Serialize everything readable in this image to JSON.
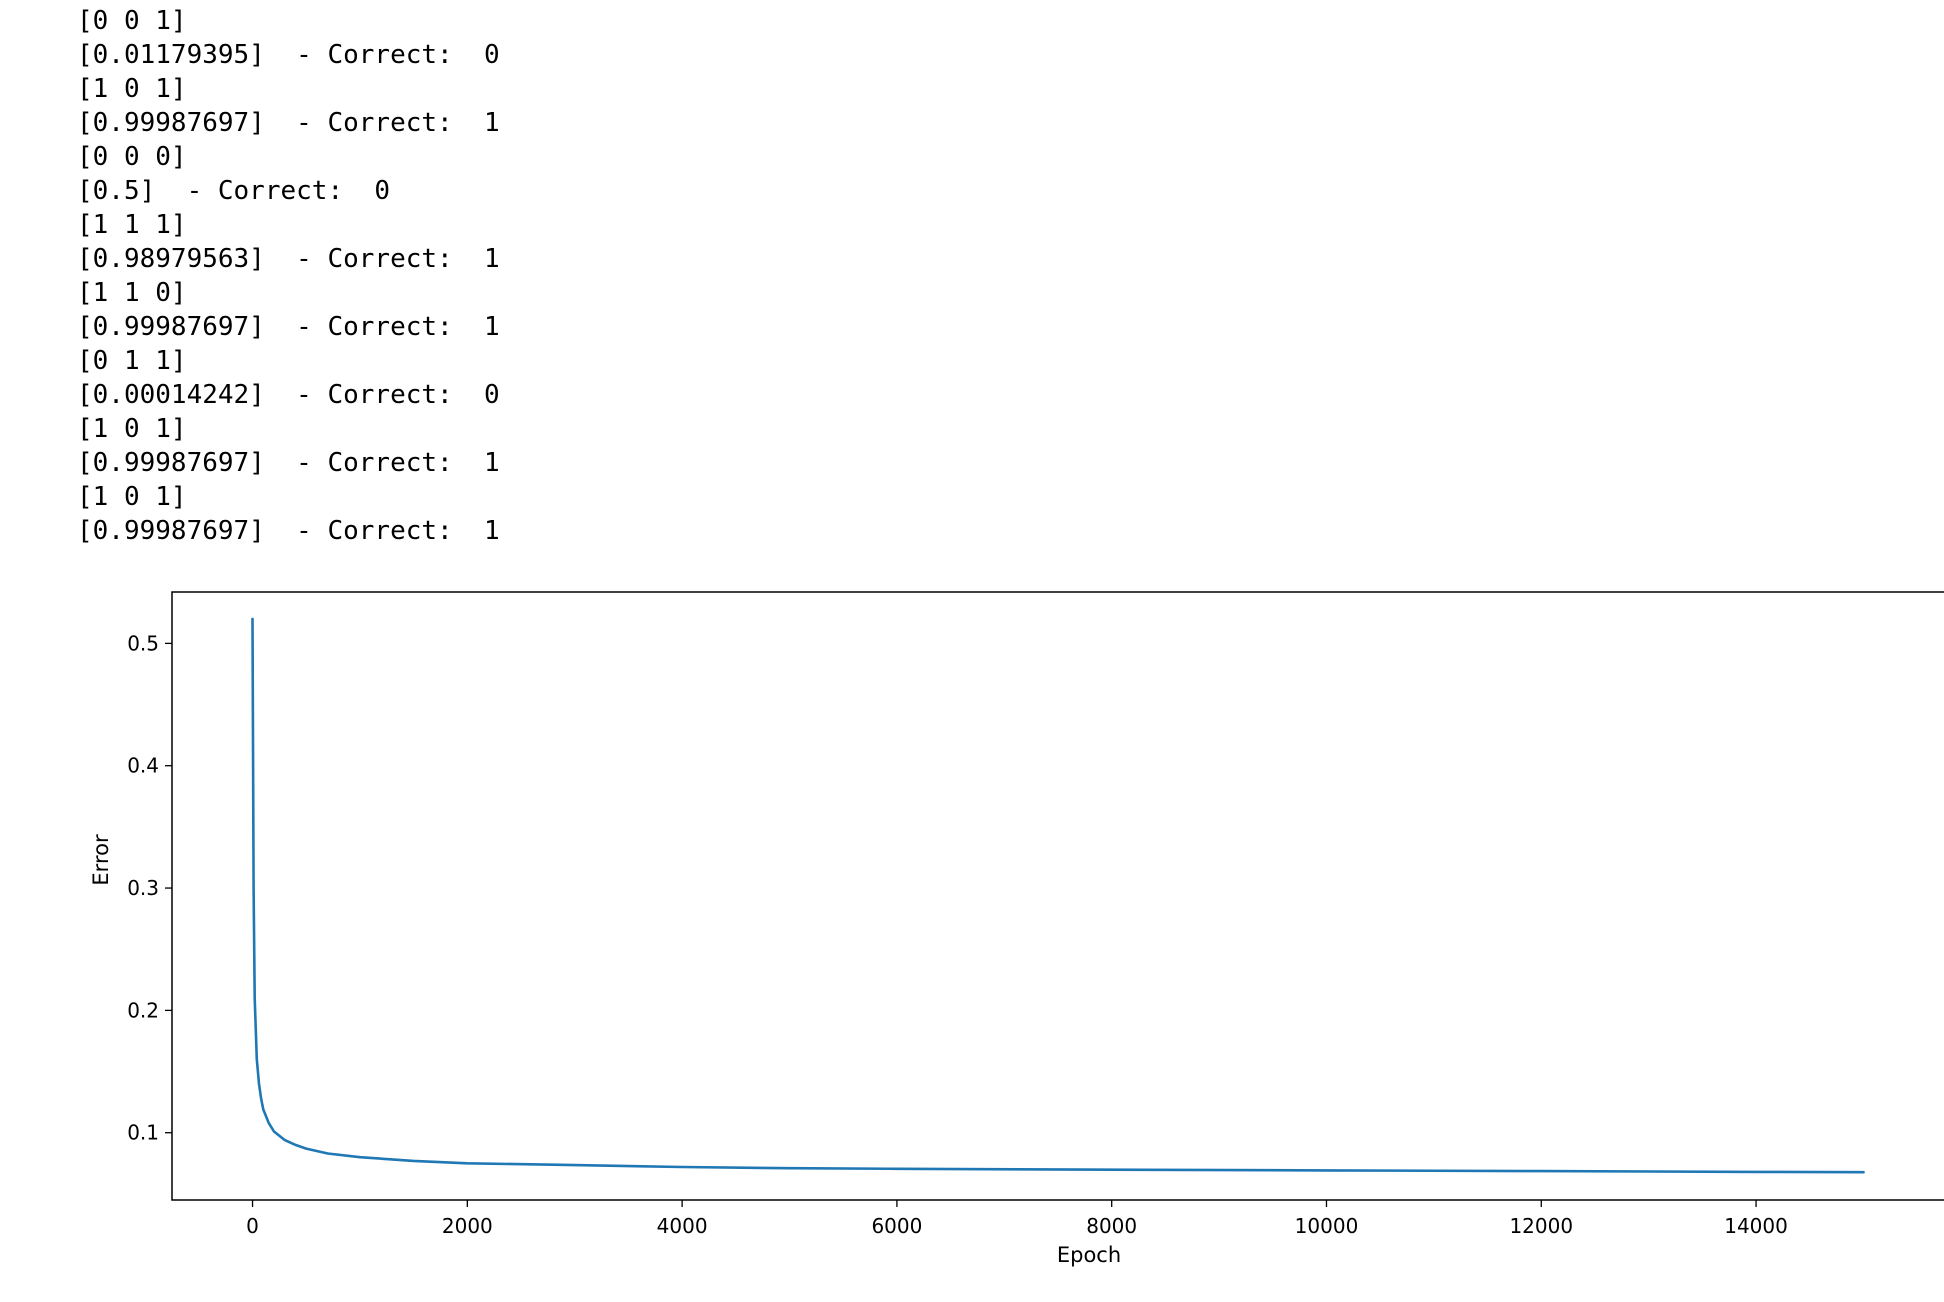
{
  "console": {
    "lines": [
      "[0 0 1]",
      "[0.01179395]  - Correct:  0",
      "[1 0 1]",
      "[0.99987697]  - Correct:  1",
      "[0 0 0]",
      "[0.5]  - Correct:  0",
      "[1 1 1]",
      "[0.98979563]  - Correct:  1",
      "[1 1 0]",
      "[0.99987697]  - Correct:  1",
      "[0 1 1]",
      "[0.00014242]  - Correct:  0",
      "[1 0 1]",
      "[0.99987697]  - Correct:  1",
      "[1 0 1]",
      "[0.99987697]  - Correct:  1"
    ]
  },
  "chart_data": {
    "type": "line",
    "title": "",
    "xlabel": "Epoch",
    "ylabel": "Error",
    "xlim": [
      -750,
      15750
    ],
    "ylim": [
      0.045,
      0.542
    ],
    "xticks": [
      0,
      2000,
      4000,
      6000,
      8000,
      10000,
      12000,
      14000
    ],
    "yticks": [
      0.1,
      0.2,
      0.3,
      0.4,
      0.5
    ],
    "grid": false,
    "legend": "none",
    "series": [
      {
        "color": "#1f77b4",
        "x": [
          0,
          10,
          20,
          40,
          60,
          80,
          100,
          150,
          200,
          300,
          400,
          500,
          700,
          1000,
          1500,
          2000,
          3000,
          4000,
          5000,
          6000,
          8000,
          10000,
          12000,
          14000,
          15000
        ],
        "y": [
          0.52,
          0.3,
          0.21,
          0.16,
          0.14,
          0.128,
          0.119,
          0.108,
          0.101,
          0.094,
          0.09,
          0.087,
          0.083,
          0.08,
          0.077,
          0.075,
          0.0735,
          0.072,
          0.071,
          0.0705,
          0.0698,
          0.0692,
          0.0686,
          0.068,
          0.0677
        ]
      }
    ]
  }
}
